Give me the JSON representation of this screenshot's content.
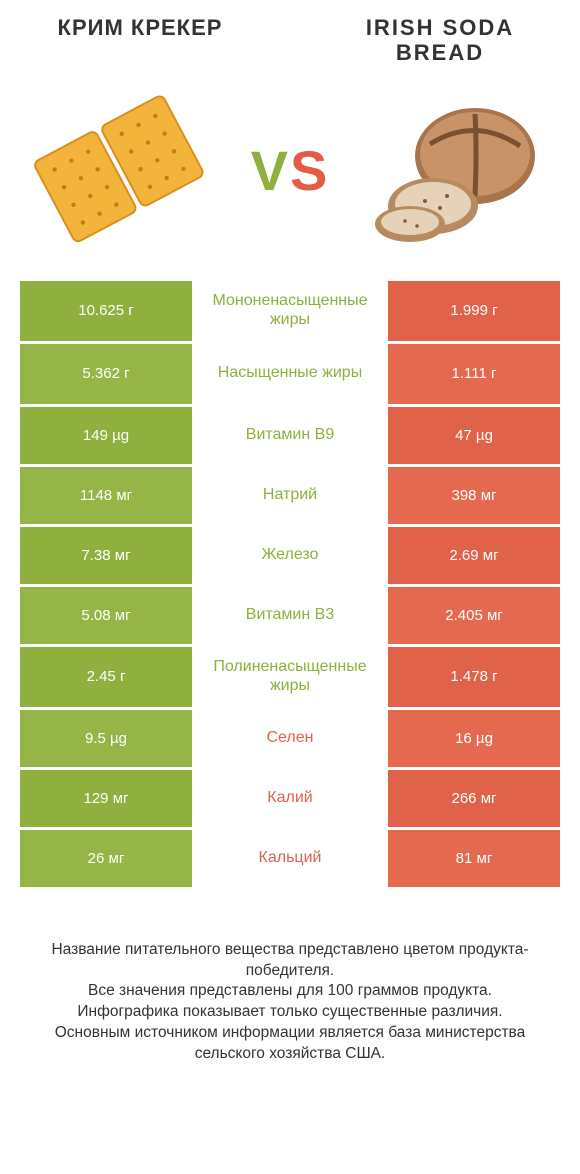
{
  "colors": {
    "green": "#8fb03e",
    "greenAlt": "#95b546",
    "orange": "#e06249",
    "orangeAlt": "#e4694f",
    "textGreen": "#8fb03e",
    "textOrange": "#e06249"
  },
  "header": {
    "left": "КРИМ КРЕКЕР",
    "right": "IRISH SODA BREAD"
  },
  "vs": {
    "v": "V",
    "s": "S"
  },
  "rows": [
    {
      "left": "10.625 г",
      "mid": "Мононенасыщенные жиры",
      "right": "1.999 г",
      "winner": "left",
      "tall": true
    },
    {
      "left": "5.362 г",
      "mid": "Насыщенные жиры",
      "right": "1.111 г",
      "winner": "left",
      "tall": true
    },
    {
      "left": "149 µg",
      "mid": "Витамин B9",
      "right": "47 µg",
      "winner": "left",
      "tall": false
    },
    {
      "left": "1148 мг",
      "mid": "Натрий",
      "right": "398 мг",
      "winner": "left",
      "tall": false
    },
    {
      "left": "7.38 мг",
      "mid": "Железо",
      "right": "2.69 мг",
      "winner": "left",
      "tall": false
    },
    {
      "left": "5.08 мг",
      "mid": "Витамин B3",
      "right": "2.405 мг",
      "winner": "left",
      "tall": false
    },
    {
      "left": "2.45 г",
      "mid": "Полиненасыщенные жиры",
      "right": "1.478 г",
      "winner": "left",
      "tall": true
    },
    {
      "left": "9.5 µg",
      "mid": "Селен",
      "right": "16 µg",
      "winner": "right",
      "tall": false
    },
    {
      "left": "129 мг",
      "mid": "Калий",
      "right": "266 мг",
      "winner": "right",
      "tall": false
    },
    {
      "left": "26 мг",
      "mid": "Кальций",
      "right": "81 мг",
      "winner": "right",
      "tall": false
    }
  ],
  "footer": {
    "l1": "Название питательного вещества представлено цветом продукта-победителя.",
    "l2": "Все значения представлены для 100 граммов продукта.",
    "l3": "Инфографика показывает только существенные различия.",
    "l4": "Основным источником информации является база министерства сельского хозяйства США."
  }
}
